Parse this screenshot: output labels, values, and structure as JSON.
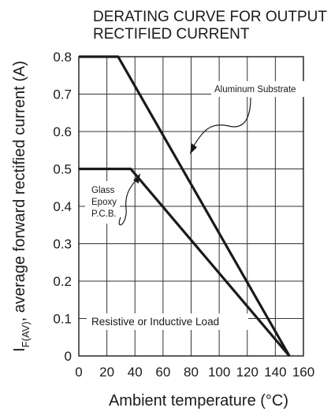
{
  "chart_data": {
    "type": "line",
    "title_lines": [
      "DERATING CURVE FOR OUTPUT",
      "RECTIFIED CURRENT"
    ],
    "ylabel_main": "I",
    "ylabel_sub": "F(AV)",
    "ylabel_rest": ", average forward rectified current (A)",
    "xlabel": "Ambient  temperature (°C)",
    "xlim": [
      0,
      160
    ],
    "ylim": [
      0,
      0.8
    ],
    "x_ticks": [
      0,
      20,
      40,
      60,
      80,
      100,
      120,
      140,
      160
    ],
    "y_ticks": [
      0,
      0.1,
      0.2,
      0.3,
      0.4,
      0.5,
      0.6,
      0.7,
      0.8
    ],
    "x_tick_labels": [
      "0",
      "20",
      "40",
      "60",
      "80",
      "100",
      "120",
      "140",
      "160"
    ],
    "y_tick_labels": [
      "0",
      "0.1",
      "0.2",
      "0.3",
      "0.4",
      "0.5",
      "0.6",
      "0.7",
      "0.8"
    ],
    "grid": true,
    "series": [
      {
        "x": [
          0,
          28,
          150
        ],
        "y": [
          0.8,
          0.8,
          0
        ]
      },
      {
        "x": [
          0,
          37,
          150
        ],
        "y": [
          0.5,
          0.5,
          0
        ]
      }
    ],
    "annotations": {
      "aluminum": "Aluminum Substrate",
      "glass_lines": [
        "Glass",
        "Epoxy",
        "P.C.B."
      ],
      "load": "Resistive or Inductive Load"
    },
    "line_color": "#1a1a1a"
  }
}
